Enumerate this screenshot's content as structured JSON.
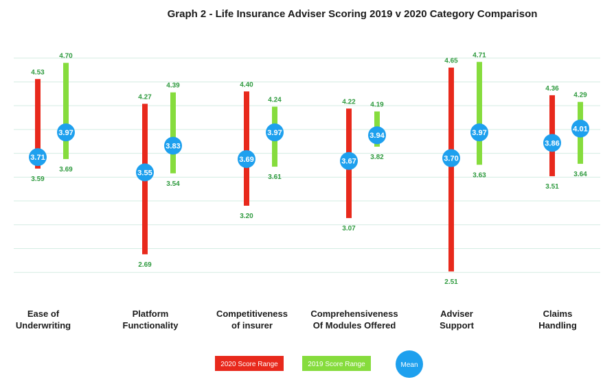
{
  "chart_data": {
    "type": "range",
    "title": "Graph 2 - Life Insurance Adviser Scoring 2019 v 2020 Category Comparison",
    "ylim": [
      2.3,
      5.0
    ],
    "grid": true,
    "categories": [
      [
        "Ease of",
        "Underwriting"
      ],
      [
        "Platform",
        "Functionality"
      ],
      [
        "Competitiveness",
        "of insurer"
      ],
      [
        "Comprehensiveness",
        "Of Modules Offered"
      ],
      [
        "Adviser",
        "Support"
      ],
      [
        "Claims",
        "Handling"
      ]
    ],
    "series": [
      {
        "name": "2020 Score Range",
        "color": "#e8291c",
        "high": [
          4.53,
          4.27,
          4.4,
          4.22,
          4.65,
          4.36
        ],
        "low": [
          3.59,
          2.69,
          3.2,
          3.07,
          2.51,
          3.51
        ],
        "mean": [
          3.71,
          3.55,
          3.69,
          3.67,
          3.7,
          3.86
        ],
        "high_text": [
          "4.53",
          "4.27",
          "4.40",
          "4.22",
          "4.65",
          "4.36"
        ],
        "low_text": [
          "3.59",
          "2.69",
          "3.20",
          "3.07",
          "2.51",
          "3.51"
        ],
        "mean_text": [
          "3.71",
          "3.55",
          "3.69",
          "3.67",
          "3.70",
          "3.86"
        ]
      },
      {
        "name": "2019 Score Range",
        "color": "#86dc3d",
        "high": [
          4.7,
          4.39,
          4.24,
          4.19,
          4.71,
          4.29
        ],
        "low": [
          3.69,
          3.54,
          3.61,
          3.82,
          3.63,
          3.64
        ],
        "mean": [
          3.97,
          3.83,
          3.97,
          3.94,
          3.97,
          4.01
        ],
        "high_text": [
          "4.70",
          "4.39",
          "4.24",
          "4.19",
          "4.71",
          "4.29"
        ],
        "low_text": [
          "3.69",
          "3.54",
          "3.61",
          "3.82",
          "3.63",
          "3.64"
        ],
        "mean_text": [
          "3.97",
          "3.83",
          "3.97",
          "3.94",
          "3.97",
          "4.01"
        ]
      }
    ],
    "legend": {
      "placement": "bottom",
      "items": [
        "2020 Score Range",
        "2019 Score Range",
        "Mean"
      ]
    },
    "mean_color": "#1ea0ee",
    "value_label_color": "#2e9a3e"
  }
}
